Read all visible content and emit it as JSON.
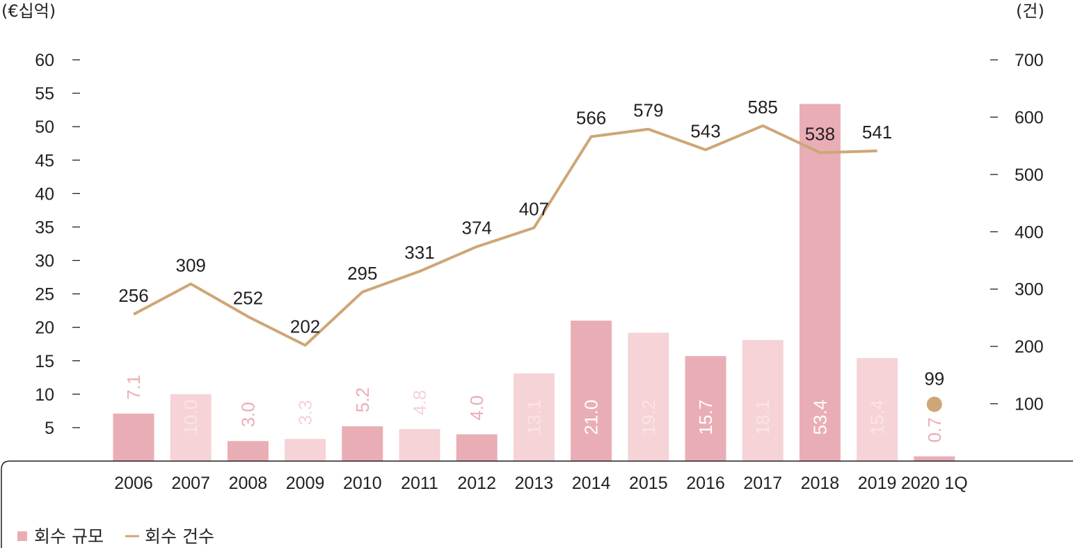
{
  "chart_data": {
    "type": "bar",
    "categories": [
      "2006",
      "2007",
      "2008",
      "2009",
      "2010",
      "2011",
      "2012",
      "2013",
      "2014",
      "2015",
      "2016",
      "2017",
      "2018",
      "2019",
      "2020 1Q"
    ],
    "series": [
      {
        "name": "회수 규모",
        "kind": "bar",
        "axis": "left",
        "values": [
          7.1,
          10.0,
          3.0,
          3.3,
          5.2,
          4.8,
          4.0,
          13.1,
          21.0,
          19.2,
          15.7,
          18.1,
          53.4,
          15.4,
          0.7
        ],
        "labels": [
          "7.1",
          "10.0",
          "3.0",
          "3.3",
          "5.2",
          "4.8",
          "4.0",
          "13.1",
          "21.0",
          "19.2",
          "15.7",
          "18.1",
          "53.4",
          "15.4",
          "0.7"
        ]
      },
      {
        "name": "회수 건수",
        "kind": "line",
        "axis": "right",
        "values": [
          256,
          309,
          252,
          202,
          295,
          331,
          374,
          407,
          566,
          579,
          543,
          585,
          538,
          541,
          99
        ],
        "labels": [
          "256",
          "309",
          "252",
          "202",
          "295",
          "331",
          "374",
          "407",
          "566",
          "579",
          "543",
          "585",
          "538",
          "541",
          "99"
        ],
        "last_point_separate": true
      }
    ],
    "y_left": {
      "unit_label": "(€십억)",
      "min": 0,
      "max": 60,
      "ticks": [
        "5",
        "10",
        "15",
        "20",
        "25",
        "30",
        "35",
        "40",
        "45",
        "50",
        "55",
        "60"
      ],
      "tick_values": [
        5,
        10,
        15,
        20,
        25,
        30,
        35,
        40,
        45,
        50,
        55,
        60
      ]
    },
    "y_right": {
      "unit_label": "(건)",
      "min": 0,
      "max": 700,
      "ticks": [
        "100",
        "200",
        "300",
        "400",
        "500",
        "600",
        "700"
      ],
      "tick_values": [
        100,
        200,
        300,
        400,
        500,
        600,
        700
      ]
    },
    "legend": {
      "placement": "bottom-left",
      "items": [
        "회수 규모",
        "회수 건수"
      ]
    },
    "grid": false
  },
  "colors": {
    "bar_dark": "#e9aeb5",
    "bar_light": "#f5d3d7",
    "line": "#cfa677",
    "text": "#231f20",
    "axis": "#231f20",
    "bar_label_dark": "#ffffff",
    "bar_label_light": "#fbe4e7"
  }
}
